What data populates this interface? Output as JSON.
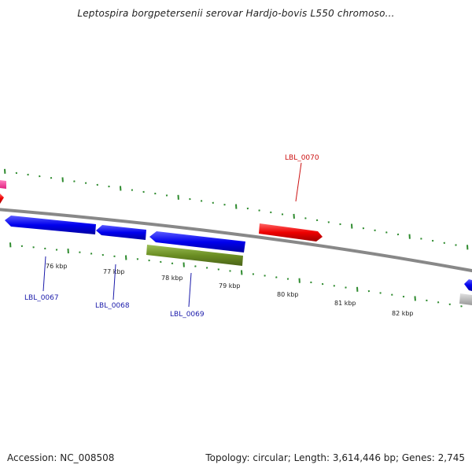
{
  "header": {
    "title": "Leptospira borgpetersenii serovar Hardjo-bovis L550 chromoso..."
  },
  "footer": {
    "accession": "Accession: NC_008508",
    "summary": "Topology: circular; Length: 3,614,446 bp; Genes: 2,745"
  },
  "ticks": [
    {
      "label": "76 kbp"
    },
    {
      "label": "77 kbp"
    },
    {
      "label": "78 kbp"
    },
    {
      "label": "79 kbp"
    },
    {
      "label": "80 kbp"
    },
    {
      "label": "81 kbp"
    },
    {
      "label": "82 kbp"
    }
  ],
  "genes": [
    {
      "id": "LBL_0067",
      "strand": "reverse",
      "color": "#0000ee",
      "label_color": "#1a1aaa"
    },
    {
      "id": "LBL_0068",
      "strand": "reverse",
      "color": "#0000ee",
      "label_color": "#1a1aaa"
    },
    {
      "id": "LBL_0069",
      "strand": "reverse",
      "color": "#0000ee",
      "label_color": "#1a1aaa"
    },
    {
      "id": "LBL_0070",
      "strand": "forward",
      "color": "#ee0000",
      "label_color": "#cc1111"
    }
  ],
  "features": {
    "rna_color": "#6b8e23",
    "partial_pink": "#ff3399",
    "partial_gray": "#bbbbbb"
  },
  "colors": {
    "backbone": "#888888",
    "tick_dots": "#2e8b2e"
  }
}
